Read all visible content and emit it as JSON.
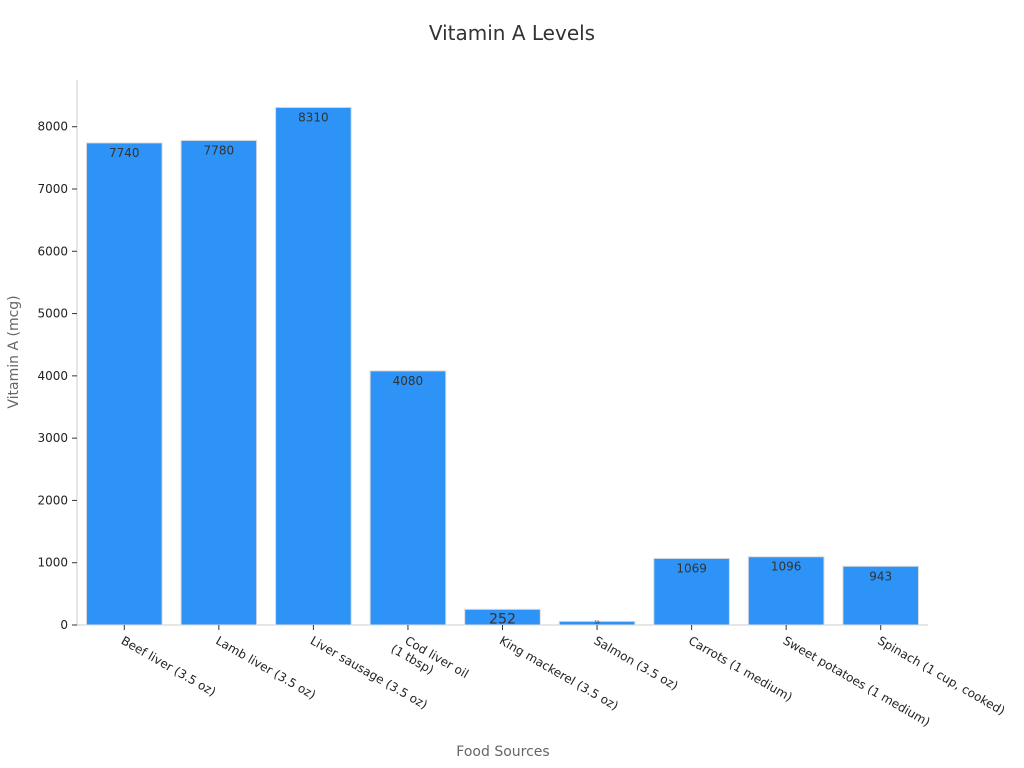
{
  "chart_data": {
    "type": "bar",
    "title": "Vitamin A Levels",
    "xlabel": "Food Sources",
    "ylabel": "Vitamin A (mcg)",
    "ylim": [
      0,
      8750
    ],
    "yticks": [
      0,
      1000,
      2000,
      3000,
      4000,
      5000,
      6000,
      7000,
      8000
    ],
    "grid": false,
    "legend": "none",
    "categories": [
      "Beef liver (3.5 oz)",
      "Lamb liver (3.5 oz)",
      "Liver sausage (3.5 oz)",
      "Cod liver oil\n(1 tbsp)",
      "King mackerel (3.5 oz)",
      "Salmon (3.5 oz)",
      "Carrots (1 medium)",
      "Sweet potatoes (1 medium)",
      "Spinach (1 cup, cooked)"
    ],
    "values": [
      7740,
      7780,
      8310,
      4080,
      252,
      59,
      1069,
      1096,
      943
    ],
    "bar_color": "#2e93f7"
  }
}
